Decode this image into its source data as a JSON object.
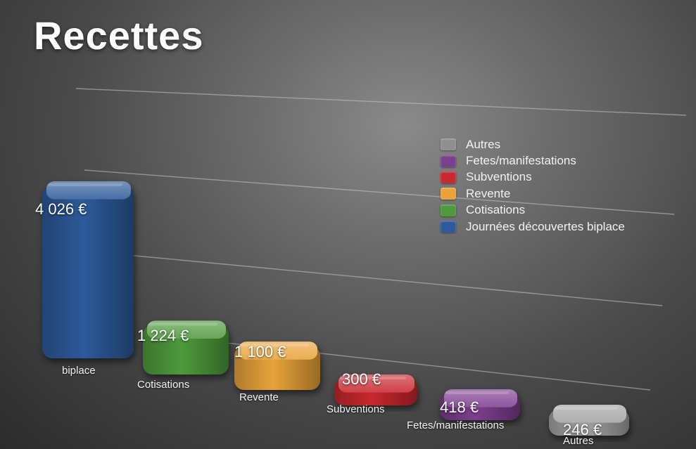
{
  "chart_data": {
    "type": "bar",
    "title": "Recettes",
    "categories": [
      "biplace",
      "Cotisations",
      "Revente",
      "Subventions",
      "Fetes/manifestations",
      "Autres"
    ],
    "values": [
      4026,
      1224,
      1100,
      300,
      418,
      246
    ],
    "value_labels": [
      "4 026 €",
      "1 224 €",
      "1 100 €",
      "300 €",
      "418 €",
      "246 €"
    ],
    "colors": [
      "#2d5a9a",
      "#4e9a3c",
      "#e8a33a",
      "#c8282e",
      "#7c3f8e",
      "#a2a2a2"
    ],
    "legend": {
      "position": "right",
      "entries": [
        {
          "label": "Autres",
          "color": "#8f8f8f"
        },
        {
          "label": "Fetes/manifestations",
          "color": "#7c3f8e"
        },
        {
          "label": "Subventions",
          "color": "#c8282e"
        },
        {
          "label": "Revente",
          "color": "#e8a33a"
        },
        {
          "label": "Cotisations",
          "color": "#4e9a3c"
        },
        {
          "label": "Journées découvertes biplace",
          "color": "#2d5a9a"
        }
      ]
    },
    "grid": true,
    "style": "3d"
  }
}
